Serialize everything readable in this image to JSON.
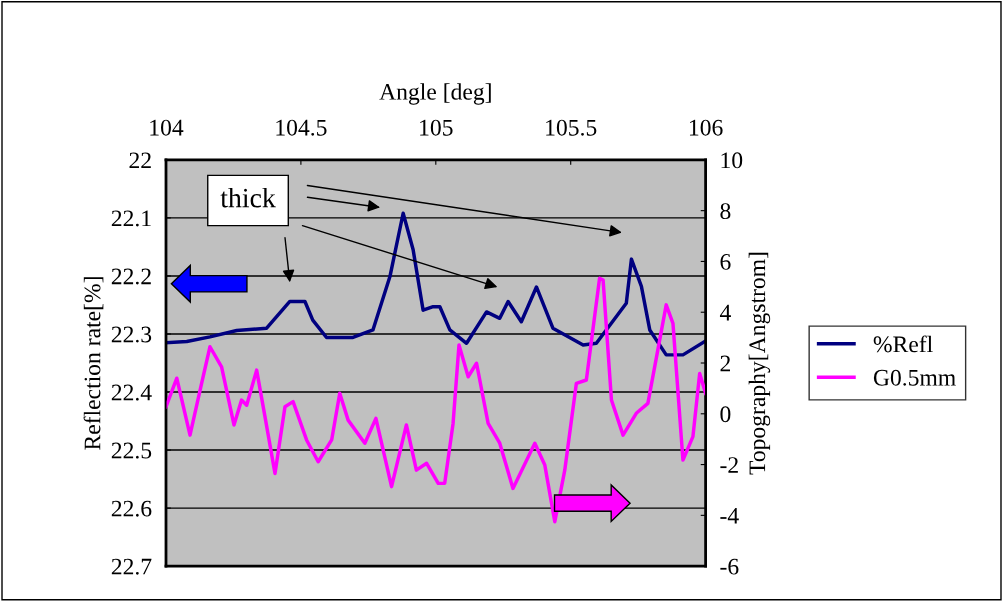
{
  "chart_data": {
    "type": "line",
    "xlabel": "Angle [deg]",
    "ylabel": "Reflection rate[%]",
    "y2label": "Topography[Angstrom]",
    "xlim": [
      104,
      106
    ],
    "xticks": [
      104,
      104.5,
      105,
      105.5,
      106
    ],
    "ylim": [
      22.7,
      22
    ],
    "yticks": [
      22,
      22.1,
      22.2,
      22.3,
      22.4,
      22.5,
      22.6,
      22.7
    ],
    "y2lim": [
      -6,
      10
    ],
    "y2ticks": [
      -6,
      -4,
      -2,
      0,
      2,
      4,
      6,
      8,
      10
    ],
    "grid": "y",
    "legend": "right",
    "marker": "none",
    "line_style": "solid",
    "series": [
      {
        "name": "%Refl",
        "color": "#000080",
        "axis": "y",
        "x": [
          104,
          104.077,
          104.163,
          104.262,
          104.373,
          104.459,
          104.515,
          104.544,
          104.595,
          104.693,
          104.767,
          104.83,
          104.879,
          104.916,
          104.953,
          104.99,
          105.015,
          105.052,
          105.114,
          105.188,
          105.237,
          105.268,
          105.317,
          105.373,
          105.434,
          105.546,
          105.595,
          105.706,
          105.725,
          105.762,
          105.793,
          105.854,
          105.916,
          105.996
        ],
        "values": [
          22.315,
          22.313,
          22.305,
          22.294,
          22.29,
          22.244,
          22.244,
          22.276,
          22.306,
          22.306,
          22.293,
          22.201,
          22.092,
          22.155,
          22.259,
          22.253,
          22.253,
          22.293,
          22.316,
          22.262,
          22.273,
          22.244,
          22.279,
          22.219,
          22.29,
          22.319,
          22.316,
          22.247,
          22.171,
          22.218,
          22.293,
          22.336,
          22.336,
          22.313
        ]
      },
      {
        "name": "G0.5mm",
        "color": "#ff00ff",
        "axis": "y2",
        "x": [
          104,
          104.04,
          104.089,
          104.132,
          104.163,
          104.206,
          104.252,
          104.28,
          104.299,
          104.336,
          104.367,
          104.404,
          104.441,
          104.471,
          104.521,
          104.564,
          104.614,
          104.644,
          104.675,
          104.737,
          104.778,
          104.836,
          104.891,
          104.928,
          104.966,
          105.009,
          105.033,
          105.064,
          105.086,
          105.12,
          105.151,
          105.194,
          105.237,
          105.286,
          105.367,
          105.404,
          105.441,
          105.478,
          105.521,
          105.558,
          105.607,
          105.62,
          105.651,
          105.694,
          105.743,
          105.786,
          105.854,
          105.879,
          105.916,
          105.953,
          105.978,
          106
        ],
        "values": [
          0.28,
          1.4,
          -0.84,
          1.2,
          2.64,
          1.85,
          -0.44,
          0.54,
          0.34,
          1.72,
          -0.12,
          -2.35,
          0.28,
          0.48,
          -1.03,
          -1.89,
          -1.03,
          0.81,
          -0.25,
          -1.16,
          -0.18,
          -2.87,
          -0.44,
          -2.22,
          -1.95,
          -2.74,
          -2.74,
          -0.38,
          2.71,
          1.46,
          1.99,
          -0.38,
          -1.16,
          -2.94,
          -1.16,
          -2.02,
          -4.25,
          -2.22,
          1.2,
          1.33,
          5.34,
          5.27,
          0.54,
          -0.84,
          0.02,
          0.41,
          4.29,
          3.56,
          -1.82,
          -0.9,
          1.59,
          0.81
        ]
      }
    ],
    "annotations": [
      "thick"
    ]
  }
}
